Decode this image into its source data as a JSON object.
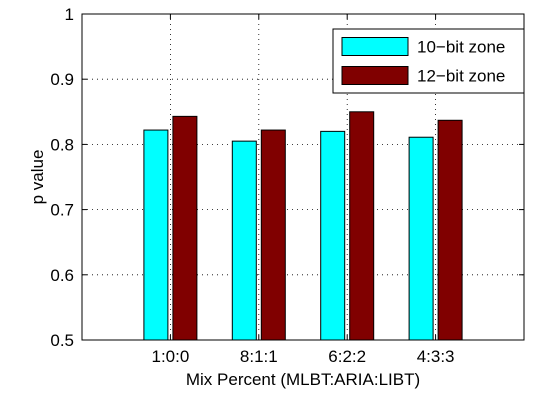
{
  "chart_data": {
    "type": "bar",
    "title": "",
    "xlabel": "Mix Percent (MLBT:ARIA:LIBT)",
    "ylabel": "p value",
    "categories": [
      "1:0:0",
      "8:1:1",
      "6:2:2",
      "4:3:3"
    ],
    "series": [
      {
        "name": "10−bit zone",
        "color": "#00ffff",
        "values": [
          0.822,
          0.805,
          0.82,
          0.811
        ]
      },
      {
        "name": "12−bit zone",
        "color": "#800000",
        "values": [
          0.843,
          0.822,
          0.85,
          0.837
        ]
      }
    ],
    "ylim": [
      0.5,
      1.0
    ],
    "yticks": [
      "0.5",
      "0.6",
      "0.7",
      "0.8",
      "0.9",
      "1"
    ],
    "grid": true,
    "legend_position": "top-right"
  }
}
